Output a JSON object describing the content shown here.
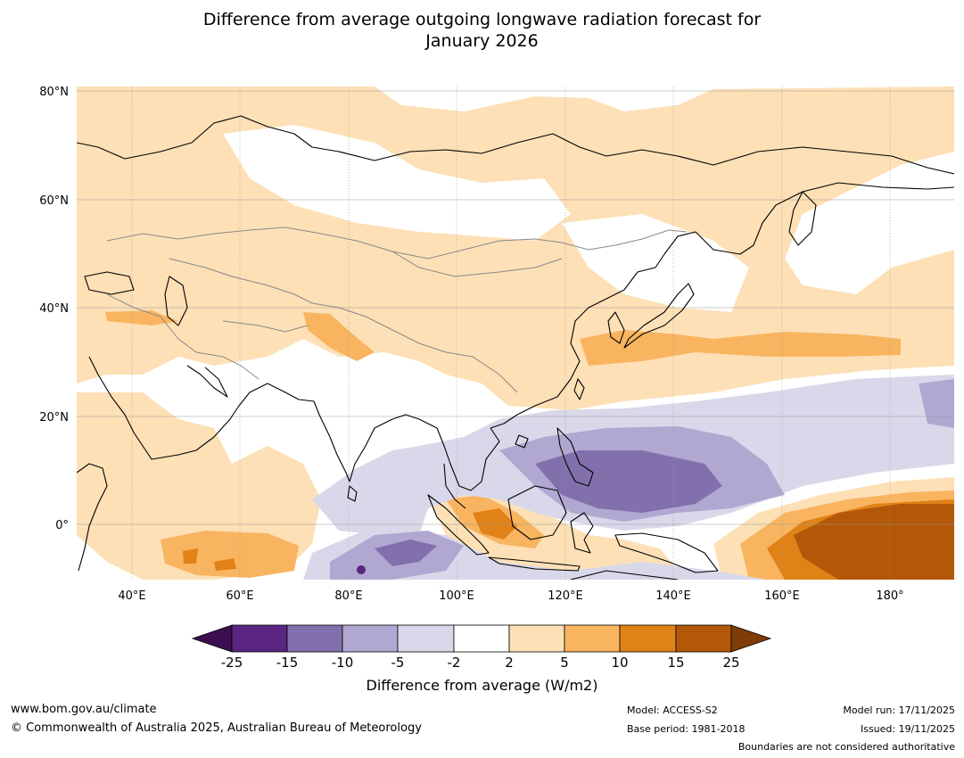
{
  "title": {
    "line1": "Difference from average outgoing longwave radiation forecast for",
    "line2": "January 2026"
  },
  "axes": {
    "lat_labels": [
      "80°N",
      "60°N",
      "40°N",
      "20°N",
      "0°"
    ],
    "lat_values": [
      80,
      60,
      40,
      20,
      0
    ],
    "lon_labels": [
      "40°E",
      "60°E",
      "80°E",
      "100°E",
      "120°E",
      "140°E",
      "160°E",
      "180°"
    ],
    "lon_values": [
      40,
      60,
      80,
      100,
      120,
      140,
      160,
      180
    ],
    "lon_range": [
      30,
      192
    ],
    "lat_range": [
      -10,
      81
    ]
  },
  "colorbar": {
    "ticks": [
      "-25",
      "-15",
      "-10",
      "-5",
      "-2",
      "2",
      "5",
      "10",
      "15",
      "25"
    ],
    "colors": [
      "#5a2482",
      "#8270ad",
      "#b0a8d1",
      "#d9d8ea",
      "#ffffff",
      "#fde0b6",
      "#f9b460",
      "#e08218",
      "#b35808"
    ],
    "under_color": "#3b0f4f",
    "over_color": "#7f3b08",
    "label": "Difference from average (W/m2)"
  },
  "footer": {
    "website": "www.bom.gov.au/climate",
    "copyright": "© Commonwealth of Australia 2025, Australian Bureau of Meteorology",
    "model": "Model: ACCESS-S2",
    "base_period": "Base period: 1981-2018",
    "model_run": "Model run: 17/11/2025",
    "issued": "Issued: 19/11/2025",
    "disclaimer": "Boundaries are not considered authoritative"
  }
}
